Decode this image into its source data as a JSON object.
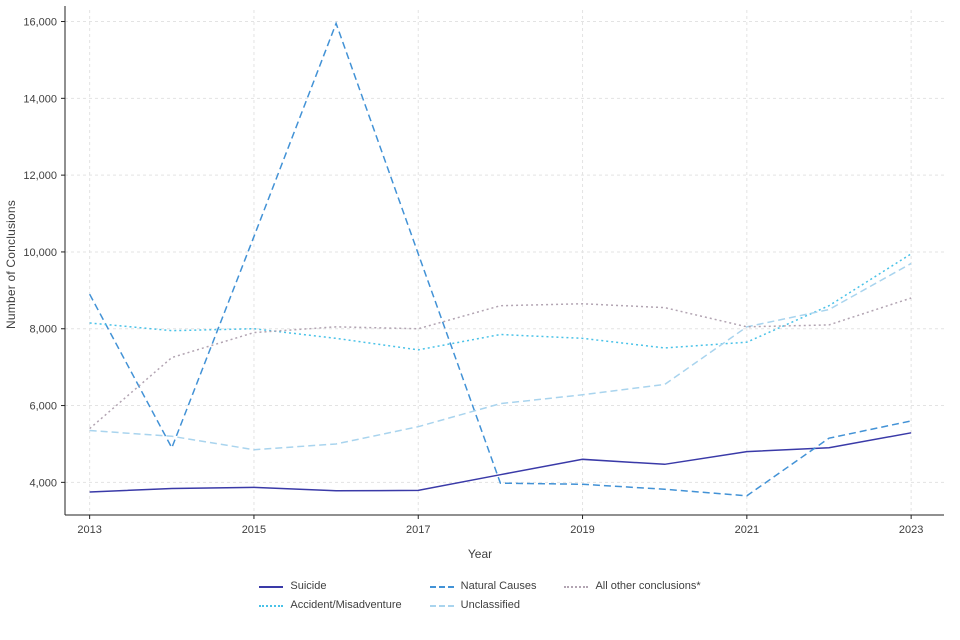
{
  "figure": {
    "background": "#ffffff",
    "grid_color": "#e3e3e3",
    "axis_color": "#222222",
    "text_color": "#404040"
  },
  "chart_data": {
    "type": "line",
    "title": "",
    "xlabel": "Year",
    "ylabel": "Number of Conclusions",
    "grid": "dashed light gray, horizontal and vertical at labeled ticks",
    "legend_position": "bottom-center, two rows",
    "x": [
      2013,
      2014,
      2015,
      2016,
      2017,
      2018,
      2019,
      2020,
      2021,
      2022,
      2023
    ],
    "x_ticks": [
      2013,
      2015,
      2017,
      2019,
      2021,
      2023
    ],
    "x_range": [
      2012.7,
      2023.4
    ],
    "y_range": [
      3150,
      16300
    ],
    "y_ticks": [
      4000,
      6000,
      8000,
      10000,
      12000,
      14000,
      16000
    ],
    "y_tick_labels": [
      "4,000",
      "6,000",
      "8,000",
      "10,000",
      "12,000",
      "14,000",
      "16,000"
    ],
    "series": [
      {
        "name": "Suicide",
        "dash": "solid",
        "color": "#3a3aa8",
        "values": [
          3750,
          3840,
          3870,
          3780,
          3790,
          4200,
          4600,
          4470,
          4800,
          4900,
          5290
        ]
      },
      {
        "name": "Natural Causes",
        "dash": "dashed",
        "color": "#4292d6",
        "values": [
          8900,
          4900,
          10400,
          15950,
          9950,
          3980,
          3950,
          3820,
          3650,
          5150,
          5600
        ]
      },
      {
        "name": "Accident/Misadventure",
        "dash": "dotted",
        "color": "#49c2e8",
        "values": [
          8150,
          7950,
          8000,
          7750,
          7450,
          7850,
          7750,
          7500,
          7650,
          8600,
          9950
        ]
      },
      {
        "name": "Unclassified",
        "dash": "dashed",
        "color": "#a9d4ee",
        "values": [
          5350,
          5200,
          4850,
          5000,
          5450,
          6050,
          6280,
          6550,
          8050,
          8500,
          9700
        ]
      },
      {
        "name": "All other conclusions*",
        "dash": "dotted",
        "color": "#b2a4b2",
        "values": [
          5400,
          7250,
          7900,
          8050,
          8000,
          8600,
          8650,
          8550,
          8050,
          8100,
          8800
        ]
      }
    ]
  }
}
